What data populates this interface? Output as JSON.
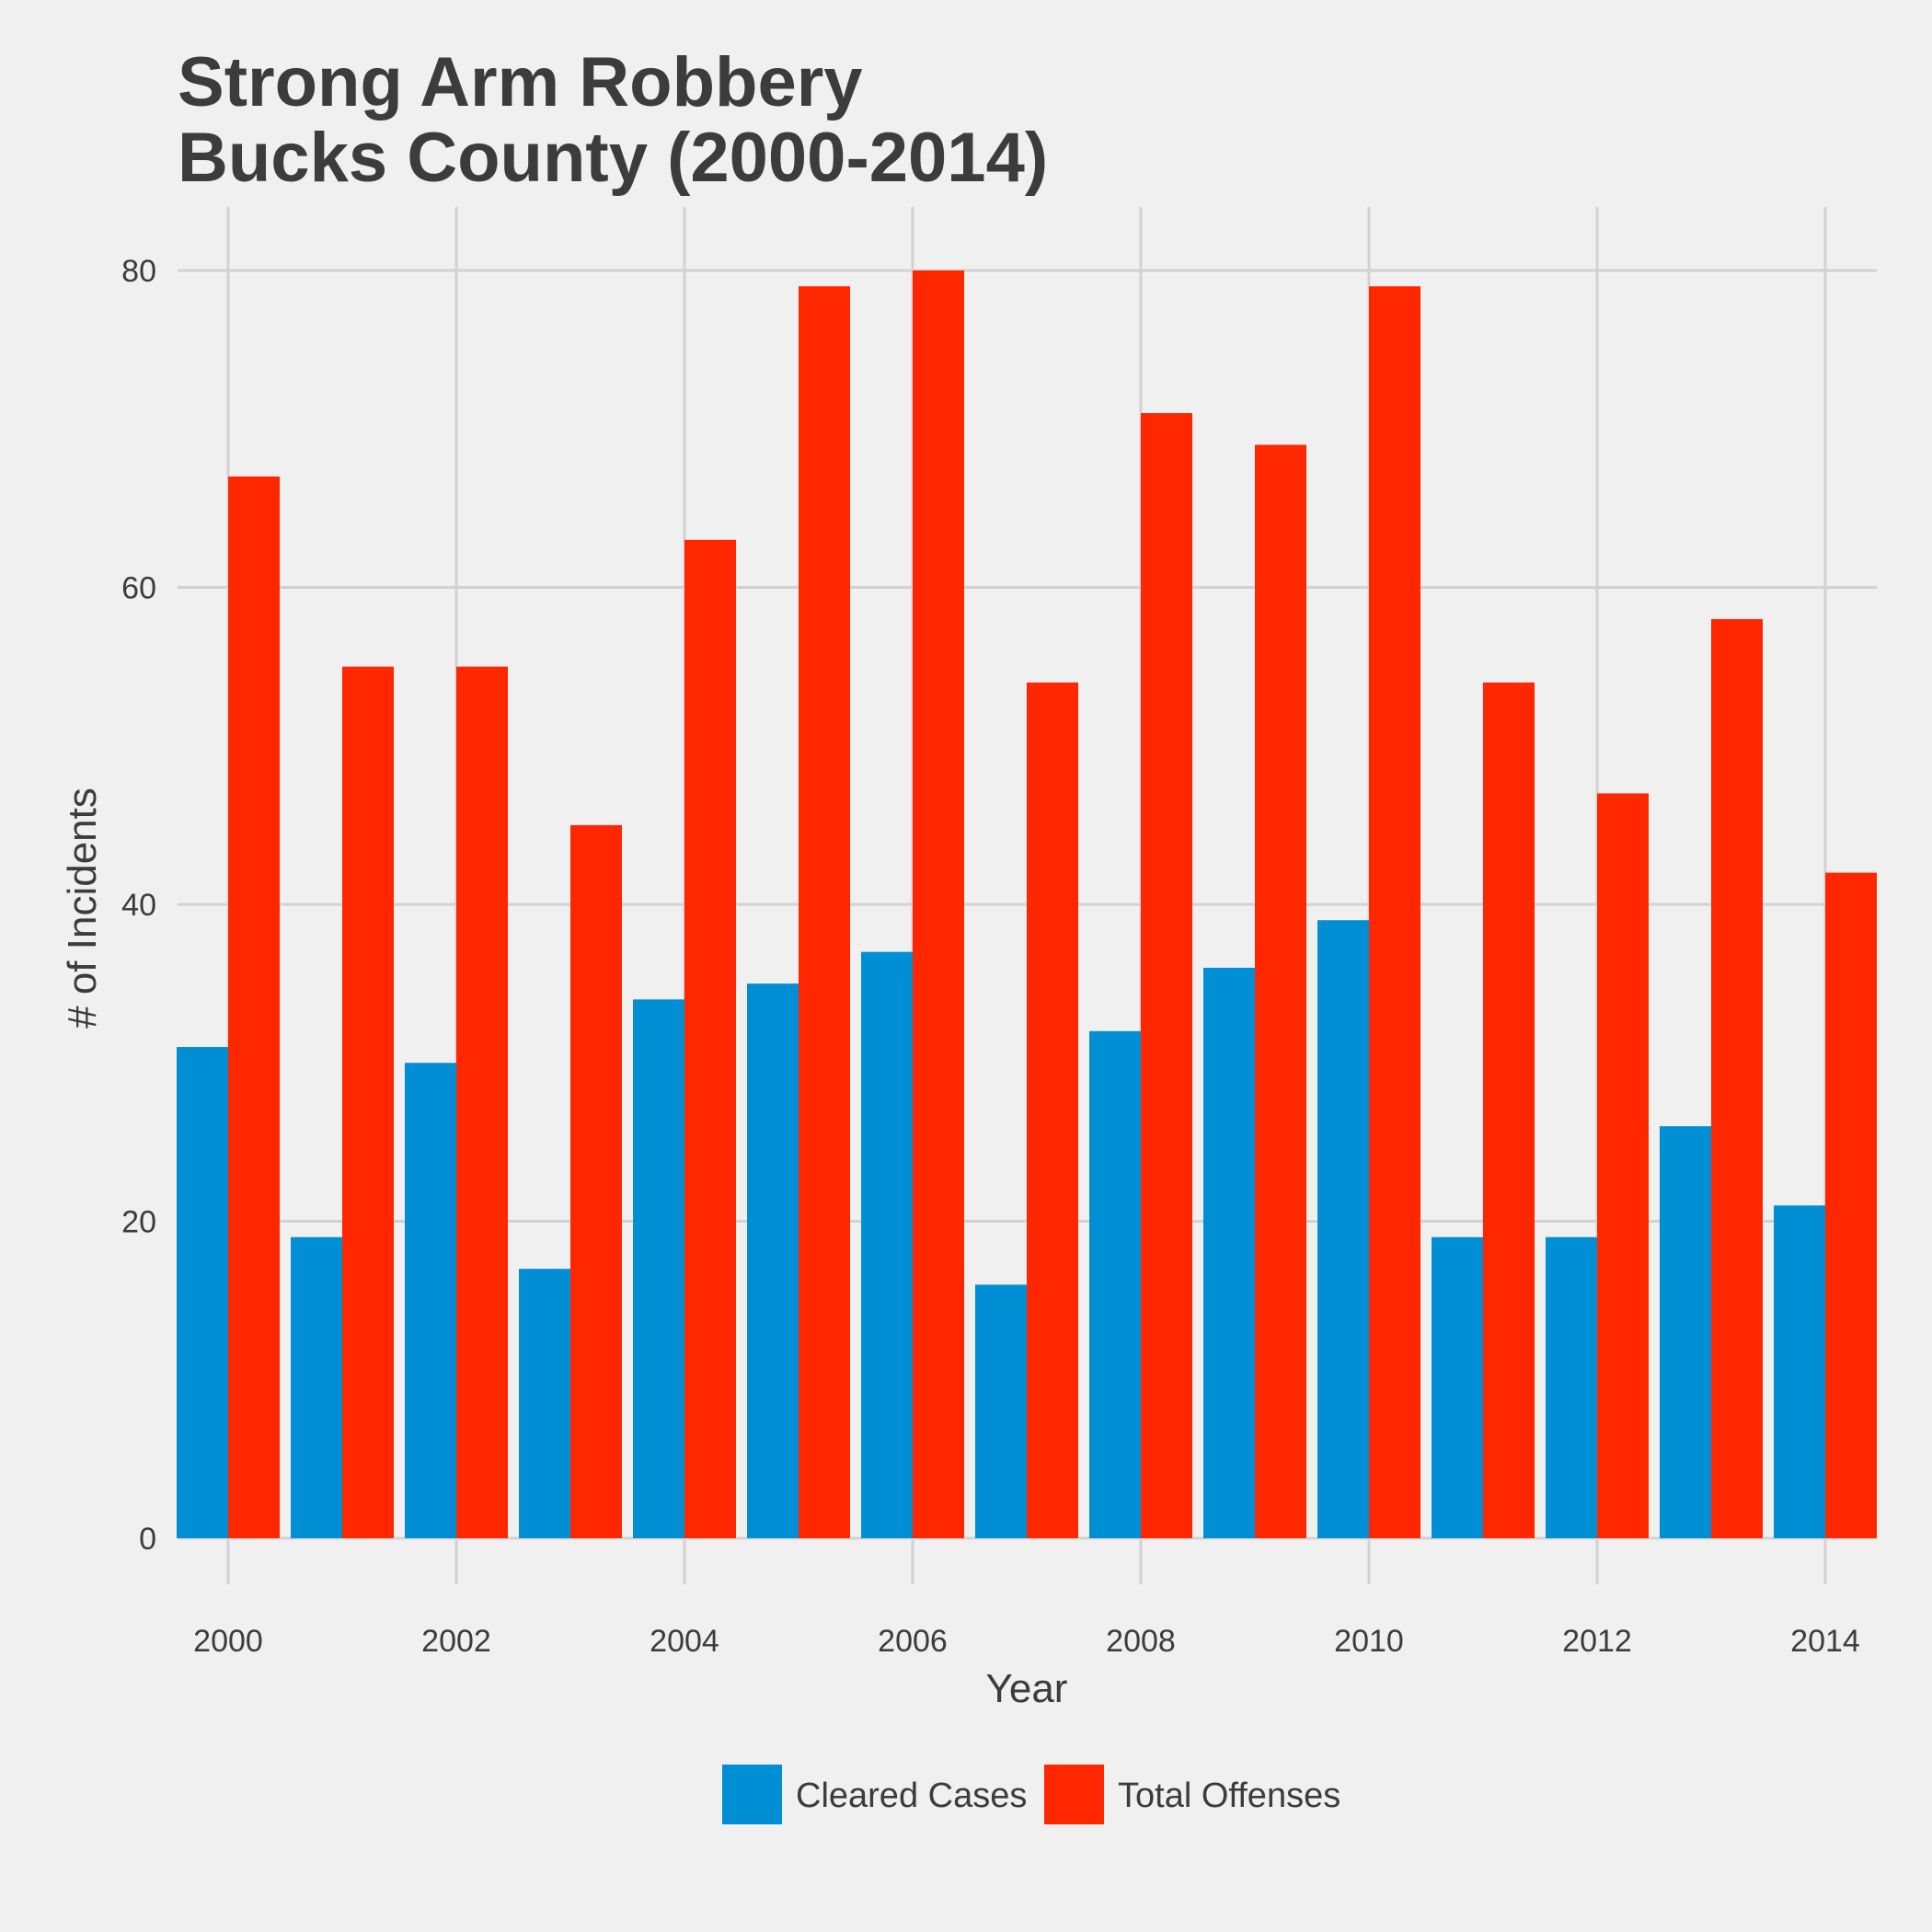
{
  "chart_data": {
    "type": "bar",
    "title": "Strong Arm Robbery\nBucks County (2000-2014)",
    "title_lines": [
      "Strong Arm Robbery",
      "Bucks County (2000-2014)"
    ],
    "xlabel": "Year",
    "ylabel": "# of Incidents",
    "categories": [
      2000,
      2001,
      2002,
      2003,
      2004,
      2005,
      2006,
      2007,
      2008,
      2009,
      2010,
      2011,
      2012,
      2013,
      2014
    ],
    "x_ticks": [
      "2000",
      "2002",
      "2004",
      "2006",
      "2008",
      "2010",
      "2012",
      "2014"
    ],
    "y_ticks": [
      "0",
      "20",
      "40",
      "60",
      "80"
    ],
    "ylim": [
      0,
      80
    ],
    "grid": true,
    "legend_position": "bottom",
    "series": [
      {
        "name": "Cleared Cases",
        "color": "#008fd5",
        "values": [
          31,
          19,
          30,
          17,
          34,
          35,
          37,
          16,
          32,
          36,
          39,
          19,
          19,
          26,
          21
        ]
      },
      {
        "name": "Total Offenses",
        "color": "#ff2700",
        "values": [
          67,
          55,
          55,
          45,
          63,
          79,
          80,
          54,
          71,
          69,
          79,
          54,
          47,
          58,
          42
        ]
      }
    ]
  }
}
